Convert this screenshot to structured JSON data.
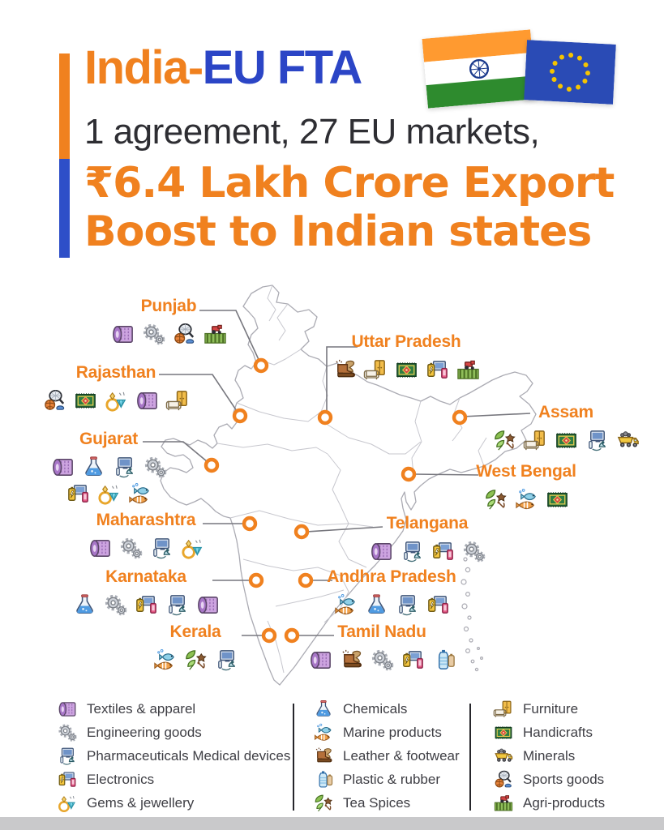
{
  "header": {
    "title_part1": "India-",
    "title_part2": "EU FTA",
    "subtitle": "1 agreement, 27 EU markets,",
    "headline_line1": "₹6.4 Lakh Crore Export",
    "headline_line2": "Boost to Indian states",
    "flags": [
      "india-flag",
      "eu-flag"
    ]
  },
  "colors": {
    "orange": "#F0811F",
    "blue": "#2B45C6",
    "text_dark": "#2E2E33",
    "map_outline": "#ABABB3",
    "legend_text": "#3E3E44"
  },
  "states": [
    {
      "name": "Punjab",
      "rows": [
        [
          "textiles",
          "engineering",
          "sports",
          "agri"
        ]
      ]
    },
    {
      "name": "Rajasthan",
      "rows": [
        [
          "sports",
          "handicrafts",
          "gems",
          "textiles",
          "furniture"
        ]
      ]
    },
    {
      "name": "Uttar Pradesh",
      "rows": [
        [
          "leather",
          "furniture",
          "handicrafts",
          "electronics",
          "agri"
        ]
      ]
    },
    {
      "name": "Assam",
      "rows": [
        [
          "tea-spices",
          "furniture",
          "handicrafts",
          "pharma",
          "minerals"
        ]
      ]
    },
    {
      "name": "Gujarat",
      "rows": [
        [
          "textiles",
          "chemicals",
          "pharma",
          "engineering"
        ],
        [
          "electronics",
          "gems",
          "marine"
        ]
      ]
    },
    {
      "name": "West Bengal",
      "rows": [
        [
          "tea-spices",
          "marine",
          "handicrafts"
        ]
      ]
    },
    {
      "name": "Maharashtra",
      "rows": [
        [
          "textiles",
          "engineering",
          "pharma",
          "gems"
        ]
      ]
    },
    {
      "name": "Telangana",
      "rows": [
        [
          "textiles",
          "pharma",
          "electronics",
          "engineering"
        ]
      ]
    },
    {
      "name": "Karnataka",
      "rows": [
        [
          "chemicals",
          "engineering",
          "electronics",
          "pharma",
          "textiles"
        ]
      ]
    },
    {
      "name": "Andhra Pradesh",
      "rows": [
        [
          "marine",
          "chemicals",
          "pharma",
          "electronics"
        ]
      ]
    },
    {
      "name": "Kerala",
      "rows": [
        [
          "marine",
          "tea-spices",
          "pharma"
        ]
      ]
    },
    {
      "name": "Tamil Nadu",
      "rows": [
        [
          "textiles",
          "leather",
          "engineering",
          "electronics",
          "plastic"
        ]
      ]
    }
  ],
  "legend": {
    "columns": [
      {
        "items": [
          {
            "icon": "textiles",
            "label": "Textiles & apparel"
          },
          {
            "icon": "engineering",
            "label": "Engineering goods"
          },
          {
            "icon": "pharma",
            "label": "Pharmaceuticals Medical devices"
          },
          {
            "icon": "electronics",
            "label": "Electronics"
          },
          {
            "icon": "gems",
            "label": "Gems & jewellery"
          }
        ]
      },
      {
        "items": [
          {
            "icon": "chemicals",
            "label": "Chemicals"
          },
          {
            "icon": "marine",
            "label": "Marine products"
          },
          {
            "icon": "leather",
            "label": "Leather & footwear"
          },
          {
            "icon": "plastic",
            "label": "Plastic & rubber"
          },
          {
            "icon": "tea-spices",
            "label": "Tea Spices"
          }
        ]
      },
      {
        "items": [
          {
            "icon": "furniture",
            "label": "Furniture"
          },
          {
            "icon": "handicrafts",
            "label": "Handicrafts"
          },
          {
            "icon": "minerals",
            "label": "Minerals"
          },
          {
            "icon": "sports",
            "label": "Sports goods"
          },
          {
            "icon": "agri",
            "label": "Agri-products"
          }
        ]
      }
    ]
  }
}
